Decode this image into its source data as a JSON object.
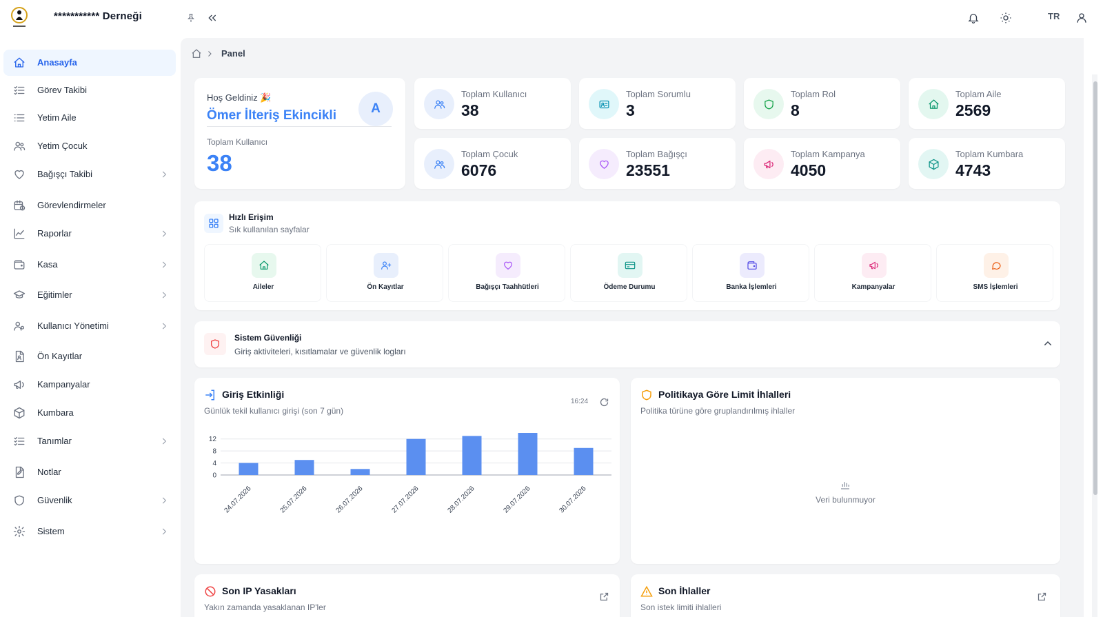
{
  "header": {
    "org_name": "*********** Derneği",
    "language": "TR",
    "icons": [
      "pin-icon",
      "collapse-sidebar-icon",
      "bell-icon",
      "sun-icon",
      "user-icon"
    ]
  },
  "sidebar": {
    "items": [
      {
        "label": "Anasayfa",
        "icon": "home-icon",
        "active": true,
        "has_children": false
      },
      {
        "label": "Görev Takibi",
        "icon": "list-check-icon",
        "active": false,
        "has_children": false
      },
      {
        "label": "Yetim Aile",
        "icon": "list-icon",
        "active": false,
        "has_children": false
      },
      {
        "label": "Yetim Çocuk",
        "icon": "users-icon",
        "active": false,
        "has_children": false
      },
      {
        "label": "Bağışçı Takibi",
        "icon": "heart-icon",
        "active": false,
        "has_children": true
      },
      {
        "label": "Görevlendirmeler",
        "icon": "calendar-clock-icon",
        "active": false,
        "has_children": false
      },
      {
        "label": "Raporlar",
        "icon": "chart-line-icon",
        "active": false,
        "has_children": true
      },
      {
        "label": "Kasa",
        "icon": "wallet-icon",
        "active": false,
        "has_children": true
      },
      {
        "label": "Eğitimler",
        "icon": "graduation-cap-icon",
        "active": false,
        "has_children": true
      },
      {
        "label": "Kullanıcı Yönetimi",
        "icon": "users-cog-icon",
        "active": false,
        "has_children": true
      },
      {
        "label": "Ön Kayıtlar",
        "icon": "file-user-icon",
        "active": false,
        "has_children": false
      },
      {
        "label": "Kampanyalar",
        "icon": "megaphone-icon",
        "active": false,
        "has_children": false
      },
      {
        "label": "Kumbara",
        "icon": "box-icon",
        "active": false,
        "has_children": false
      },
      {
        "label": "Tanımlar",
        "icon": "list-check-icon",
        "active": false,
        "has_children": true
      },
      {
        "label": "Notlar",
        "icon": "note-icon",
        "active": false,
        "has_children": false
      },
      {
        "label": "Güvenlik",
        "icon": "shield-icon",
        "active": false,
        "has_children": true
      },
      {
        "label": "Sistem",
        "icon": "gear-icon",
        "active": false,
        "has_children": true
      }
    ]
  },
  "breadcrumb": {
    "current": "Panel"
  },
  "welcome": {
    "greeting": "Hoş Geldiniz 🎉",
    "user_name": "Ömer İlteriş Ekincikli",
    "avatar_letter": "A",
    "total_label": "Toplam Kullanıcı",
    "total_value": "38"
  },
  "stats": [
    {
      "label": "Toplam Kullanıcı",
      "value": "38",
      "icon": "users-icon",
      "color": "#3b82f6",
      "bg": "#e8effc"
    },
    {
      "label": "Toplam Sorumlu",
      "value": "3",
      "icon": "id-card-icon",
      "color": "#0891b2",
      "bg": "#e0f7fa"
    },
    {
      "label": "Toplam Rol",
      "value": "8",
      "icon": "shield-icon",
      "color": "#16a34a",
      "bg": "#e7f8ee"
    },
    {
      "label": "Toplam Aile",
      "value": "2569",
      "icon": "home-icon",
      "color": "#059669",
      "bg": "#e3f7ef"
    },
    {
      "label": "Toplam Çocuk",
      "value": "6076",
      "icon": "users-icon",
      "color": "#3b82f6",
      "bg": "#e8effc"
    },
    {
      "label": "Toplam Bağışçı",
      "value": "23551",
      "icon": "heart-icon",
      "color": "#a855f7",
      "bg": "#f5ecfd"
    },
    {
      "label": "Toplam Kampanya",
      "value": "4050",
      "icon": "megaphone-icon",
      "color": "#db2777",
      "bg": "#fdecf3"
    },
    {
      "label": "Toplam Kumbara",
      "value": "4743",
      "icon": "box-icon",
      "color": "#0d9488",
      "bg": "#e2f6f3"
    }
  ],
  "quick_access": {
    "title": "Hızlı Erişim",
    "subtitle": "Sık kullanılan sayfalar",
    "tiles": [
      {
        "label": "Aileler",
        "icon": "home-icon",
        "color": "#059669",
        "bg": "#e7f8ee"
      },
      {
        "label": "Ön Kayıtlar",
        "icon": "user-plus-icon",
        "color": "#3b82f6",
        "bg": "#e8effc"
      },
      {
        "label": "Bağışçı Taahhütleri",
        "icon": "heart-icon",
        "color": "#a855f7",
        "bg": "#f5ecfd"
      },
      {
        "label": "Ödeme Durumu",
        "icon": "credit-card-icon",
        "color": "#0d9488",
        "bg": "#e2f6f3"
      },
      {
        "label": "Banka İşlemleri",
        "icon": "wallet-icon",
        "color": "#4f46e5",
        "bg": "#ecebfd"
      },
      {
        "label": "Kampanyalar",
        "icon": "megaphone-icon",
        "color": "#db2777",
        "bg": "#fdecf3"
      },
      {
        "label": "SMS İşlemleri",
        "icon": "chat-icon",
        "color": "#ea580c",
        "bg": "#fef1e7"
      }
    ]
  },
  "security": {
    "title": "Sistem Güvenliği",
    "subtitle": "Giriş aktiviteleri, kısıtlamalar ve güvenlik logları"
  },
  "login_activity": {
    "title": "Giriş Etkinliği",
    "subtitle": "Günlük tekil kullanıcı girişi (son 7 gün)",
    "time": "16:24"
  },
  "chart_data": {
    "type": "bar",
    "categories": [
      "24.07.2026",
      "25.07.2026",
      "26.07.2026",
      "27.07.2026",
      "28.07.2026",
      "29.07.2026",
      "30.07.2026"
    ],
    "values": [
      4,
      5,
      2,
      12,
      13,
      14,
      9
    ],
    "ylim": [
      0,
      14
    ],
    "yticks": [
      0,
      4,
      8,
      12
    ],
    "grid": true,
    "bar_color": "#5b8ff0"
  },
  "policy_limits": {
    "title": "Politikaya Göre Limit İhlalleri",
    "subtitle": "Politika türüne göre gruplandırılmış ihlaller",
    "empty_text": "Veri bulunmuyor"
  },
  "ip_bans": {
    "title": "Son IP Yasakları",
    "subtitle": "Yakın zamanda yasaklanan IP'ler"
  },
  "violations": {
    "title": "Son İhlaller",
    "subtitle": "Son istek limiti ihlalleri"
  }
}
